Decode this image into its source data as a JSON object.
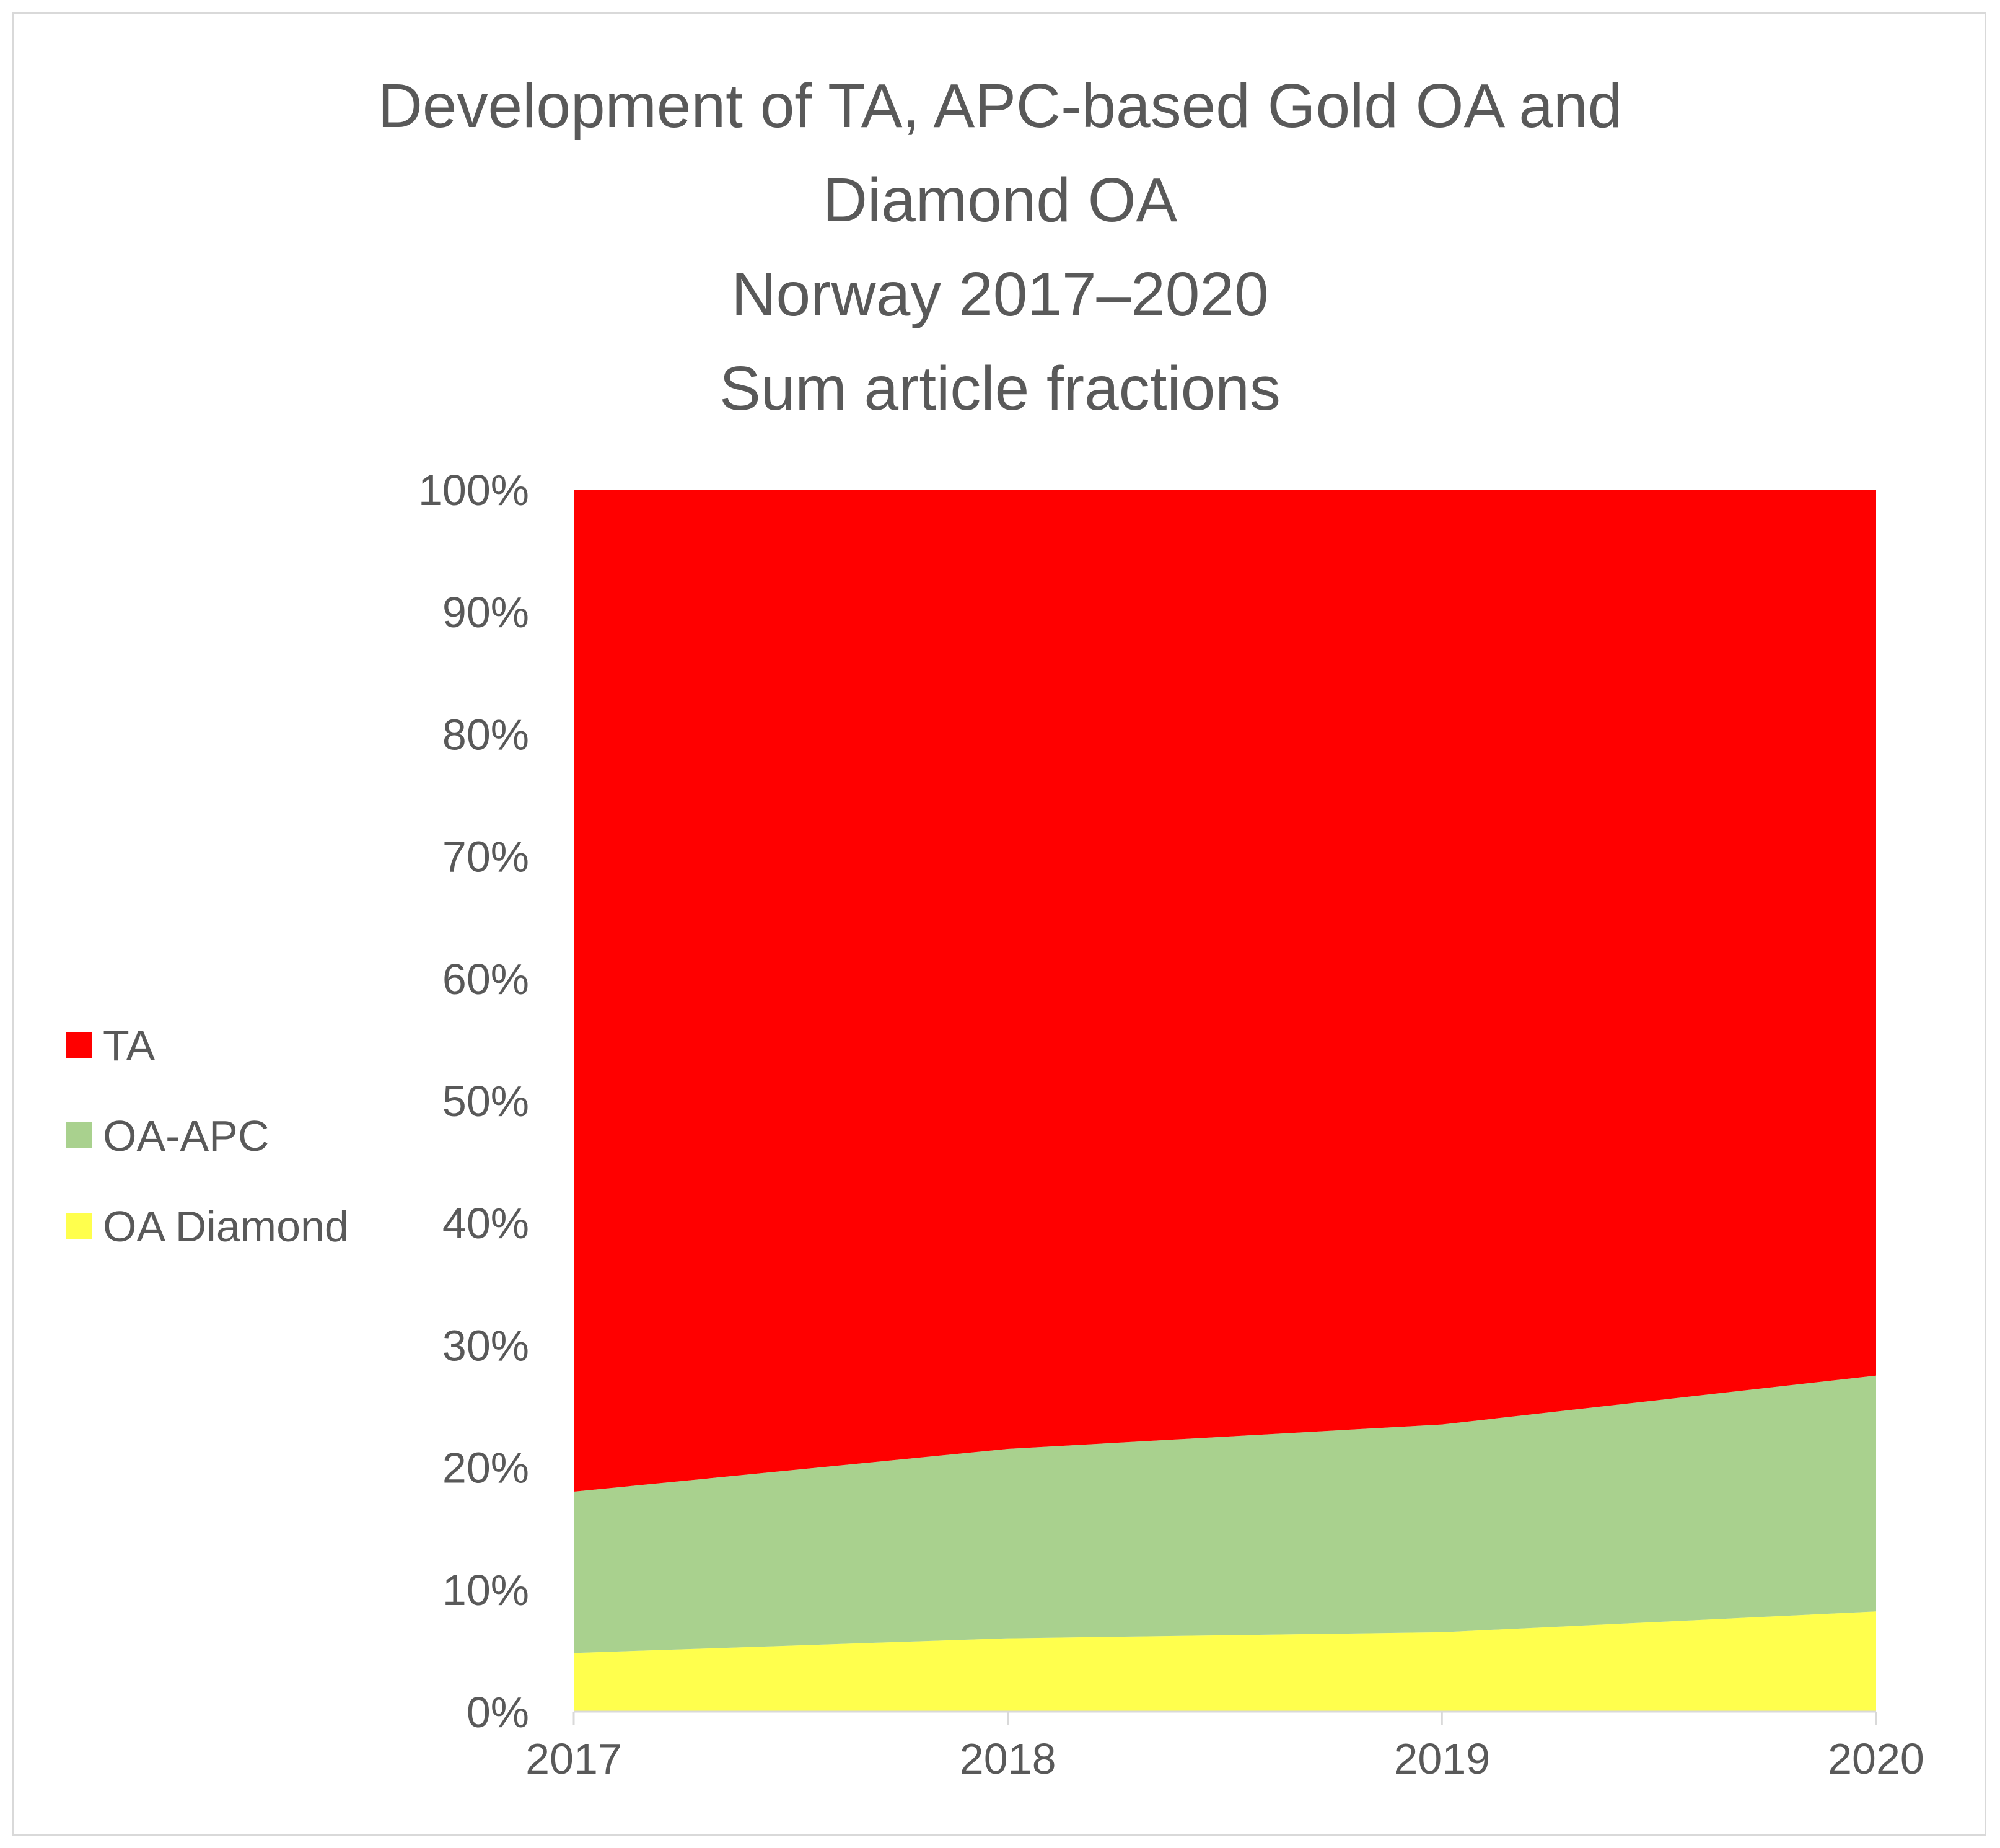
{
  "chart_data": {
    "type": "area",
    "stacked": true,
    "percent_stacked": true,
    "title_lines": [
      "Development of TA, APC-based Gold OA and",
      "Diamond OA",
      "Norway 2017–2020",
      "Sum article fractions"
    ],
    "categories": [
      "2017",
      "2018",
      "2019",
      "2020"
    ],
    "series": [
      {
        "name": "OA Diamond",
        "color": "#ffff4d",
        "values": [
          4.8,
          6.0,
          6.5,
          8.2
        ]
      },
      {
        "name": "OA-APC",
        "color": "#a9d18e",
        "values": [
          13.2,
          15.5,
          17.0,
          19.3
        ]
      },
      {
        "name": "TA",
        "color": "#ff0000",
        "values": [
          82.0,
          78.5,
          76.5,
          72.5
        ]
      }
    ],
    "legend_order": [
      "TA",
      "OA-APC",
      "OA Diamond"
    ],
    "legend_position": "left",
    "ylim": [
      0,
      100
    ],
    "yticks": [
      0,
      10,
      20,
      30,
      40,
      50,
      60,
      70,
      80,
      90,
      100
    ],
    "ytick_labels": [
      "0%",
      "10%",
      "20%",
      "30%",
      "40%",
      "50%",
      "60%",
      "70%",
      "80%",
      "90%",
      "100%"
    ],
    "xlabel": "",
    "ylabel": "",
    "grid": false
  }
}
